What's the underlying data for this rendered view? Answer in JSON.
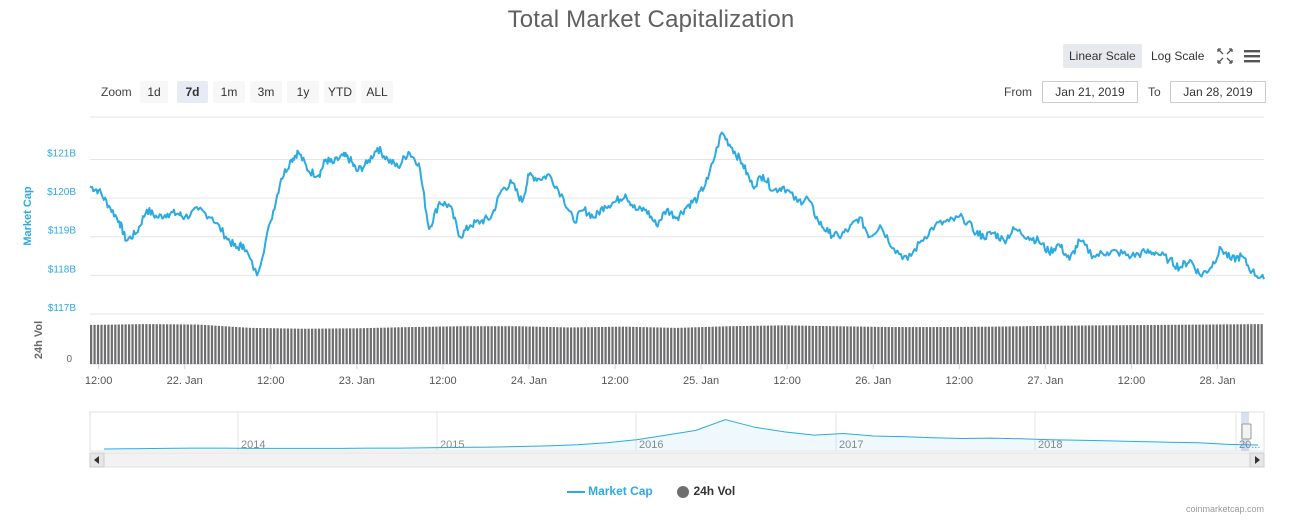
{
  "title": "Total Market Capitalization",
  "scale_buttons": {
    "linear": "Linear Scale",
    "log": "Log Scale",
    "active": "linear"
  },
  "icons": {
    "fullscreen": "fullscreen-icon",
    "menu": "hamburger-menu-icon"
  },
  "zoom": {
    "label": "Zoom",
    "options": [
      "1d",
      "7d",
      "1m",
      "3m",
      "1y",
      "YTD",
      "ALL"
    ],
    "selected": "7d"
  },
  "range": {
    "from_label": "From",
    "from_value": "Jan 21, 2019",
    "to_label": "To",
    "to_value": "Jan 28, 2019"
  },
  "legend": {
    "market_cap": "Market Cap",
    "volume": "24h Vol"
  },
  "credits": "coinmarketcap.com",
  "colors": {
    "line": "#2caae2",
    "volume": "#6e6e6e",
    "axis_text": "#2caae2",
    "grid": "#e6e6e6"
  },
  "chart_data": {
    "type": "line",
    "y_axis_label": "Market Cap",
    "y_ticks": [
      "$117B",
      "$118B",
      "$119B",
      "$120B",
      "$121B"
    ],
    "y_tick_values": [
      117,
      118,
      119,
      120,
      121
    ],
    "ylim": [
      117,
      122.1
    ],
    "x_ticks": [
      "12:00",
      "22. Jan",
      "12:00",
      "23. Jan",
      "12:00",
      "24. Jan",
      "12:00",
      "25. Jan",
      "12:00",
      "26. Jan",
      "12:00",
      "27. Jan",
      "12:00",
      "28. Jan"
    ],
    "x_tick_positions": [
      0.5,
      1.0,
      1.5,
      2.0,
      2.5,
      3.0,
      3.5,
      4.0,
      4.5,
      5.0,
      5.5,
      6.0,
      6.5,
      7.0
    ],
    "xlim": [
      0.45,
      7.27
    ],
    "series": [
      {
        "name": "Market Cap",
        "x": [
          0.45,
          0.5,
          0.56,
          0.62,
          0.66,
          0.72,
          0.78,
          0.84,
          0.9,
          0.96,
          1.0,
          1.08,
          1.16,
          1.24,
          1.3,
          1.34,
          1.42,
          1.5,
          1.56,
          1.62,
          1.66,
          1.72,
          1.78,
          1.82,
          1.86,
          1.92,
          1.96,
          2.0,
          2.06,
          2.12,
          2.18,
          2.24,
          2.3,
          2.36,
          2.42,
          2.48,
          2.54,
          2.6,
          2.66,
          2.72,
          2.78,
          2.84,
          2.9,
          2.96,
          3.0,
          3.06,
          3.12,
          3.2,
          3.26,
          3.32,
          3.38,
          3.44,
          3.5,
          3.56,
          3.62,
          3.68,
          3.74,
          3.8,
          3.86,
          3.92,
          3.98,
          4.04,
          4.12,
          4.18,
          4.24,
          4.3,
          4.36,
          4.42,
          4.48,
          4.56,
          4.62,
          4.68,
          4.74,
          4.8,
          4.86,
          4.92,
          4.98,
          5.04,
          5.12,
          5.2,
          5.28,
          5.36,
          5.44,
          5.52,
          5.6,
          5.64,
          5.7,
          5.76,
          5.82,
          5.9,
          5.96,
          6.02,
          6.08,
          6.14,
          6.2,
          6.28,
          6.36,
          6.42,
          6.5,
          6.58,
          6.64,
          6.72,
          6.78,
          6.84,
          6.9,
          6.96,
          7.02,
          7.08,
          7.14,
          7.2,
          7.27
        ],
        "values": [
          120.3,
          120.2,
          119.8,
          119.4,
          118.9,
          119.1,
          119.7,
          119.5,
          119.6,
          119.6,
          119.5,
          119.7,
          119.5,
          119.0,
          118.7,
          118.8,
          118.0,
          119.4,
          120.5,
          121.0,
          121.2,
          120.7,
          120.6,
          121.0,
          120.9,
          121.1,
          121.0,
          120.7,
          120.9,
          121.3,
          121.0,
          120.8,
          121.2,
          120.9,
          119.2,
          119.9,
          119.8,
          119.0,
          119.3,
          119.4,
          119.5,
          120.2,
          120.4,
          119.9,
          120.6,
          120.5,
          120.6,
          120.0,
          119.4,
          119.7,
          119.5,
          119.8,
          119.9,
          120.1,
          119.7,
          119.7,
          119.3,
          119.7,
          119.5,
          119.8,
          120.0,
          120.5,
          121.7,
          121.3,
          120.9,
          120.3,
          120.6,
          120.2,
          120.3,
          119.9,
          120.0,
          119.4,
          119.1,
          119.0,
          119.2,
          119.5,
          119.0,
          119.3,
          118.7,
          118.4,
          118.9,
          119.3,
          119.4,
          119.5,
          119.1,
          119.0,
          119.1,
          118.9,
          119.2,
          119.0,
          118.9,
          118.6,
          118.8,
          118.4,
          118.9,
          118.5,
          118.6,
          118.6,
          118.5,
          118.6,
          118.6,
          118.4,
          118.2,
          118.4,
          118.0,
          118.2,
          118.7,
          118.4,
          118.5,
          118.1,
          117.9
        ],
        "values_note": "",
        "color": "#2caae2"
      },
      {
        "name": "24h Vol",
        "color": "#6e6e6e"
      }
    ],
    "volume_axis": {
      "label": "24h Vol",
      "ticks": [
        "0"
      ]
    },
    "volume_bar_count": 340,
    "volume_profile": [
      0.93,
      0.95,
      0.94,
      0.86,
      0.84,
      0.85,
      0.88,
      0.9,
      0.9,
      0.87,
      0.89,
      0.86,
      0.9,
      0.92,
      0.9,
      0.88,
      0.88,
      0.89,
      0.91,
      0.92,
      0.93,
      0.94,
      0.95
    ],
    "navigator": {
      "x_ticks": [
        "2014",
        "2015",
        "2016",
        "2017",
        "2018",
        "20..."
      ],
      "profile": [
        0.0,
        0.01,
        0.02,
        0.03,
        0.03,
        0.02,
        0.02,
        0.02,
        0.02,
        0.03,
        0.03,
        0.04,
        0.05,
        0.06,
        0.08,
        0.1,
        0.14,
        0.2,
        0.3,
        0.45,
        0.6,
        0.95,
        0.7,
        0.55,
        0.45,
        0.5,
        0.42,
        0.4,
        0.36,
        0.34,
        0.35,
        0.33,
        0.3,
        0.28,
        0.26,
        0.24,
        0.22,
        0.2,
        0.15,
        0.13
      ]
    }
  }
}
